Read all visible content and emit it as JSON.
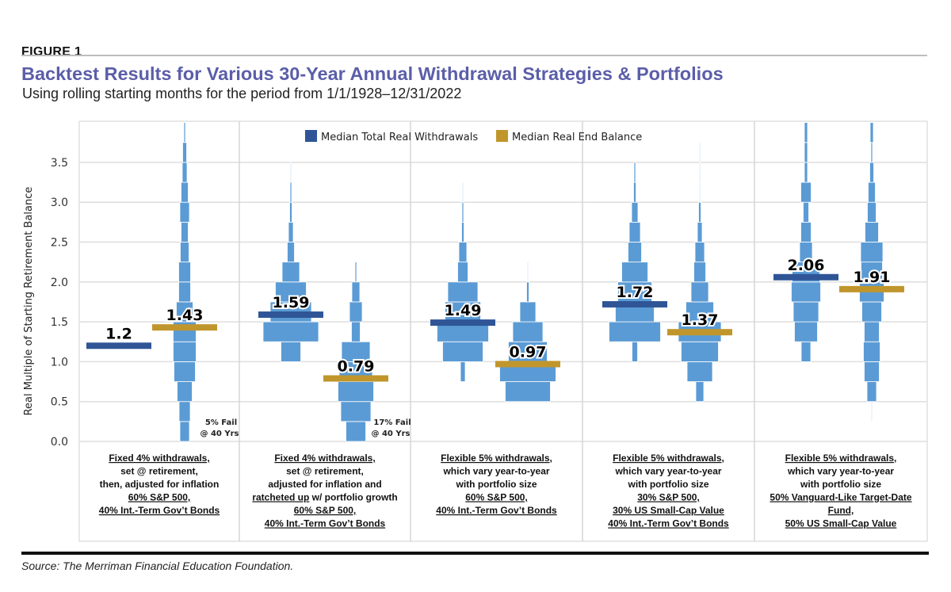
{
  "figure_label": "FIGURE 1",
  "title": "Backtest Results for Various 30-Year Annual Withdrawal Strategies & Portfolios",
  "subtitle": "Using rolling starting months for the period from 1/1/1928–12/31/2022",
  "source": "Source: The Merriman Financial Education Foundation.",
  "colors": {
    "title": "#5b5ea8",
    "histogram": "#5b9bd5",
    "withdrawals": "#2f5597",
    "end_balance": "#c0962c"
  },
  "chart_data": {
    "type": "bar",
    "subtype": "paired histograms (violin-style) with median markers",
    "ylabel": "Real Multiple of Starting Retirement Balance",
    "ylim": [
      0,
      4.0
    ],
    "yticks": [
      "0.0",
      "0.5",
      "1.0",
      "1.5",
      "2.0",
      "2.5",
      "3.0",
      "3.5"
    ],
    "ytick_values": [
      0,
      0.5,
      1.0,
      1.5,
      2.0,
      2.5,
      3.0,
      3.5
    ],
    "grid": true,
    "bin_size": 0.25,
    "legend": {
      "placement": "top-center",
      "entries": [
        "Median Total Real Withdrawals",
        "Median Real End Balance"
      ]
    },
    "panels": [
      {
        "label_lines": [
          [
            {
              "t": "Fixed 4% withdrawals,",
              "u": true
            }
          ],
          [
            {
              "t": "set @ retirement,",
              "u": false
            }
          ],
          [
            {
              "t": "then, adjusted for inflation",
              "u": false
            }
          ],
          [
            {
              "t": "60% S&P 500,",
              "u": true
            }
          ],
          [
            {
              "t": "40% Int.-Term Gov’t Bonds",
              "u": true
            }
          ]
        ],
        "withdrawals": {
          "median": 1.2,
          "median_label": "1.2",
          "bin_start": 0,
          "freq": []
        },
        "end_balance": {
          "median": 1.43,
          "median_label": "1.43",
          "bin_start": 0,
          "freq": [
            12,
            14,
            19,
            27,
            29,
            29,
            21,
            15,
            15,
            11,
            9,
            12,
            9,
            6,
            5,
            2
          ]
        },
        "annotation": [
          "5% Fail",
          "@ 40 Yrs"
        ]
      },
      {
        "label_lines": [
          [
            {
              "t": "Fixed 4% withdrawals,",
              "u": true
            }
          ],
          [
            {
              "t": "set @ retirement,",
              "u": false
            }
          ],
          [
            {
              "t": "adjusted for inflation and",
              "u": false
            }
          ],
          [
            {
              "t": "ratcheted up",
              "u": true
            },
            {
              "t": " w/ portfolio growth",
              "u": false
            }
          ],
          [
            {
              "t": "60% S&P 500,",
              "u": true
            }
          ],
          [
            {
              "t": "40% Int.-Term Gov’t Bonds",
              "u": true
            }
          ]
        ],
        "withdrawals": {
          "median": 1.59,
          "median_label": "1.59",
          "bin_start": 1.0,
          "freq": [
            25,
            70,
            52,
            39,
            22,
            9,
            6,
            3,
            2,
            1
          ]
        },
        "end_balance": {
          "median": 0.79,
          "median_label": "0.79",
          "bin_start": 0,
          "freq": [
            25,
            38,
            45,
            42,
            36,
            11,
            16,
            10,
            2
          ]
        },
        "annotation": [
          "17% Fail",
          "@ 40 Yrs"
        ]
      },
      {
        "label_lines": [
          [
            {
              "t": "Flexible 5% withdrawals,",
              "u": true
            }
          ],
          [
            {
              "t": "which vary year-to-year",
              "u": false
            }
          ],
          [
            {
              "t": "with portfolio size",
              "u": false
            }
          ],
          [
            {
              "t": "60% S&P 500,",
              "u": true
            }
          ],
          [
            {
              "t": "40% Int.-Term Gov’t Bonds",
              "u": true
            }
          ]
        ],
        "withdrawals": {
          "median": 1.49,
          "median_label": "1.49",
          "bin_start": 0.75,
          "freq": [
            6,
            51,
            65,
            45,
            38,
            13,
            10,
            3,
            2,
            1
          ]
        },
        "end_balance": {
          "median": 0.97,
          "median_label": "0.97",
          "bin_start": 0.5,
          "freq": [
            57,
            71,
            49,
            38,
            20,
            3,
            1
          ]
        }
      },
      {
        "label_lines": [
          [
            {
              "t": "Flexible 5% withdrawals,",
              "u": true
            }
          ],
          [
            {
              "t": "which vary year-to-year",
              "u": false
            }
          ],
          [
            {
              "t": "with portfolio size",
              "u": false
            }
          ],
          [
            {
              "t": "30% S&P 500,",
              "u": true
            }
          ],
          [
            {
              "t": "30% US Small-Cap Value",
              "u": true
            }
          ],
          [
            {
              "t": "40% Int.-Term Gov’t Bonds",
              "u": true
            }
          ]
        ],
        "withdrawals": {
          "median": 1.72,
          "median_label": "1.72",
          "bin_start": 1.0,
          "freq": [
            7,
            65,
            49,
            43,
            33,
            17,
            14,
            8,
            3,
            2
          ]
        },
        "end_balance": {
          "median": 1.37,
          "median_label": "1.37",
          "bin_start": 0.5,
          "freq": [
            10,
            32,
            47,
            54,
            35,
            22,
            15,
            12,
            6,
            3,
            1,
            1,
            1
          ]
        }
      },
      {
        "label_lines": [
          [
            {
              "t": "Flexible 5% withdrawals,",
              "u": true
            }
          ],
          [
            {
              "t": "which vary year-to-year",
              "u": false
            }
          ],
          [
            {
              "t": "with portfolio size",
              "u": false
            }
          ],
          [
            {
              "t": "50% Vanguard-Like Target-Date",
              "u": true
            }
          ],
          [
            {
              "t": "Fund,",
              "u": true
            }
          ],
          [
            {
              "t": "50% US Small-Cap Value",
              "u": true
            }
          ]
        ],
        "withdrawals": {
          "median": 2.06,
          "median_label": "2.06",
          "bin_start": 1.0,
          "freq": [
            12,
            29,
            32,
            37,
            35,
            16,
            13,
            7,
            13,
            4,
            4,
            4
          ]
        },
        "end_balance": {
          "median": 1.91,
          "median_label": "1.91",
          "bin_start": 0.25,
          "freq": [
            1,
            12,
            19,
            21,
            19,
            25,
            31,
            27,
            28,
            17,
            11,
            9,
            5,
            2,
            4
          ]
        }
      }
    ]
  }
}
